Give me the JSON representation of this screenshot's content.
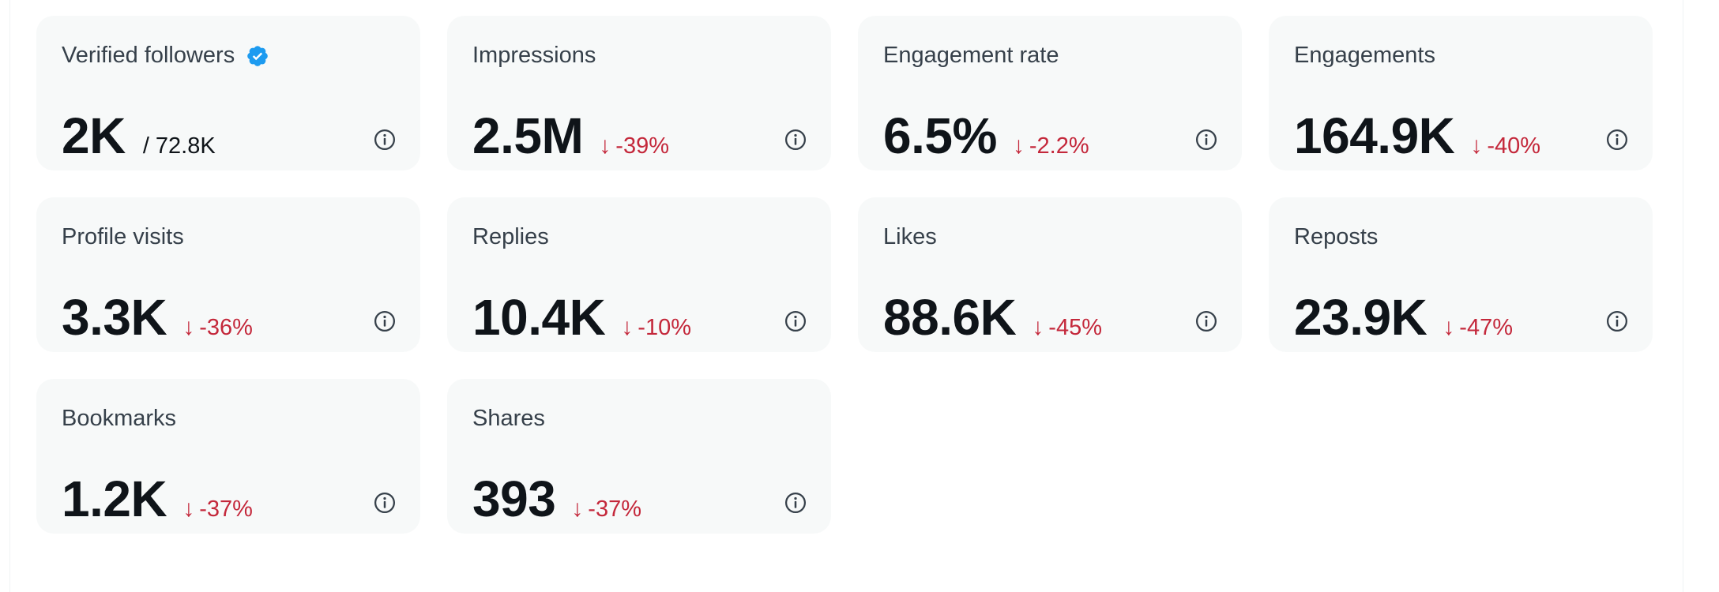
{
  "metrics": [
    {
      "label": "Verified followers",
      "value": "2K",
      "total": "/ 72.8K",
      "verified": true
    },
    {
      "label": "Impressions",
      "value": "2.5M",
      "delta": "-39%"
    },
    {
      "label": "Engagement rate",
      "value": "6.5%",
      "delta": "-2.2%"
    },
    {
      "label": "Engagements",
      "value": "164.9K",
      "delta": "-40%"
    },
    {
      "label": "Profile visits",
      "value": "3.3K",
      "delta": "-36%"
    },
    {
      "label": "Replies",
      "value": "10.4K",
      "delta": "-10%"
    },
    {
      "label": "Likes",
      "value": "88.6K",
      "delta": "-45%"
    },
    {
      "label": "Reposts",
      "value": "23.9K",
      "delta": "-47%"
    },
    {
      "label": "Bookmarks",
      "value": "1.2K",
      "delta": "-37%"
    },
    {
      "label": "Shares",
      "value": "393",
      "delta": "-37%"
    }
  ],
  "icons": {
    "verified": "verified-badge-icon",
    "info": "info-icon",
    "arrow": "arrow-down-icon"
  },
  "colors": {
    "card_background": "#f7f9f9",
    "negative_delta": "#c4283b",
    "verified_blue": "#1d9bf0",
    "value_text": "#0f1419"
  }
}
